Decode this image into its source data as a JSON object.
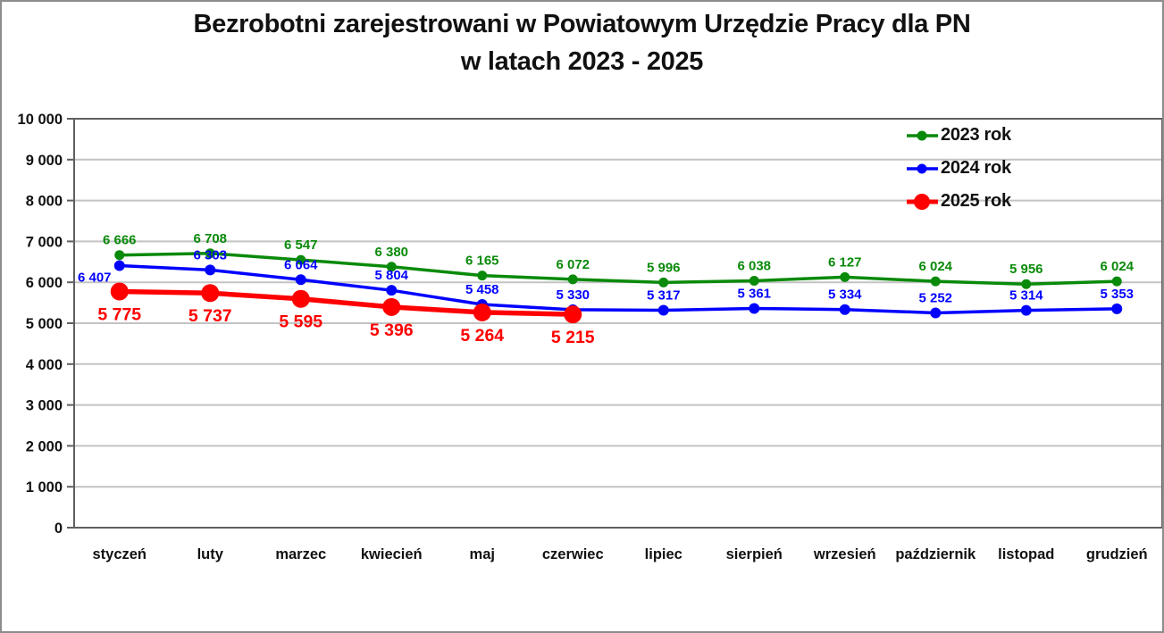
{
  "title": {
    "line1": "Bezrobotni zarejestrowani w Powiatowym Urzędzie Pracy dla PN",
    "line2": "w latach 2023 - 2025"
  },
  "chart_data": {
    "type": "line",
    "title": "Bezrobotni zarejestrowani w Powiatowym Urzędzie Pracy dla PN w latach 2023 - 2025",
    "categories": [
      "styczeń",
      "luty",
      "marzec",
      "kwiecień",
      "maj",
      "czerwiec",
      "lipiec",
      "sierpień",
      "wrzesień",
      "październik",
      "listopad",
      "grudzień"
    ],
    "series": [
      {
        "name": "2023 rok",
        "color": "#0a8a0a",
        "values": [
          6666,
          6708,
          6547,
          6380,
          6165,
          6072,
          5996,
          6038,
          6127,
          6024,
          5956,
          6024
        ]
      },
      {
        "name": "2024 rok",
        "color": "#0000ff",
        "values": [
          6407,
          6303,
          6064,
          5804,
          5458,
          5330,
          5317,
          5361,
          5334,
          5252,
          5314,
          5353
        ]
      },
      {
        "name": "2025 rok",
        "color": "#ff0000",
        "values": [
          5775,
          5737,
          5595,
          5396,
          5264,
          5215
        ]
      }
    ],
    "xlabel": "",
    "ylabel": "",
    "ylim": [
      0,
      10000
    ],
    "ytick_step": 1000,
    "ytick_labels": [
      "0",
      "1 000",
      "2 000",
      "3 000",
      "4 000",
      "5 000",
      "6 000",
      "7 000",
      "8 000",
      "9 000",
      "10 000"
    ],
    "grid": "horizontal",
    "legend_position": "top-right",
    "data_labels": true
  },
  "colors": {
    "background": "#ffffff",
    "grid": "#c3c3c3",
    "axis_border": "#5f5f5f",
    "text": "#111111"
  }
}
